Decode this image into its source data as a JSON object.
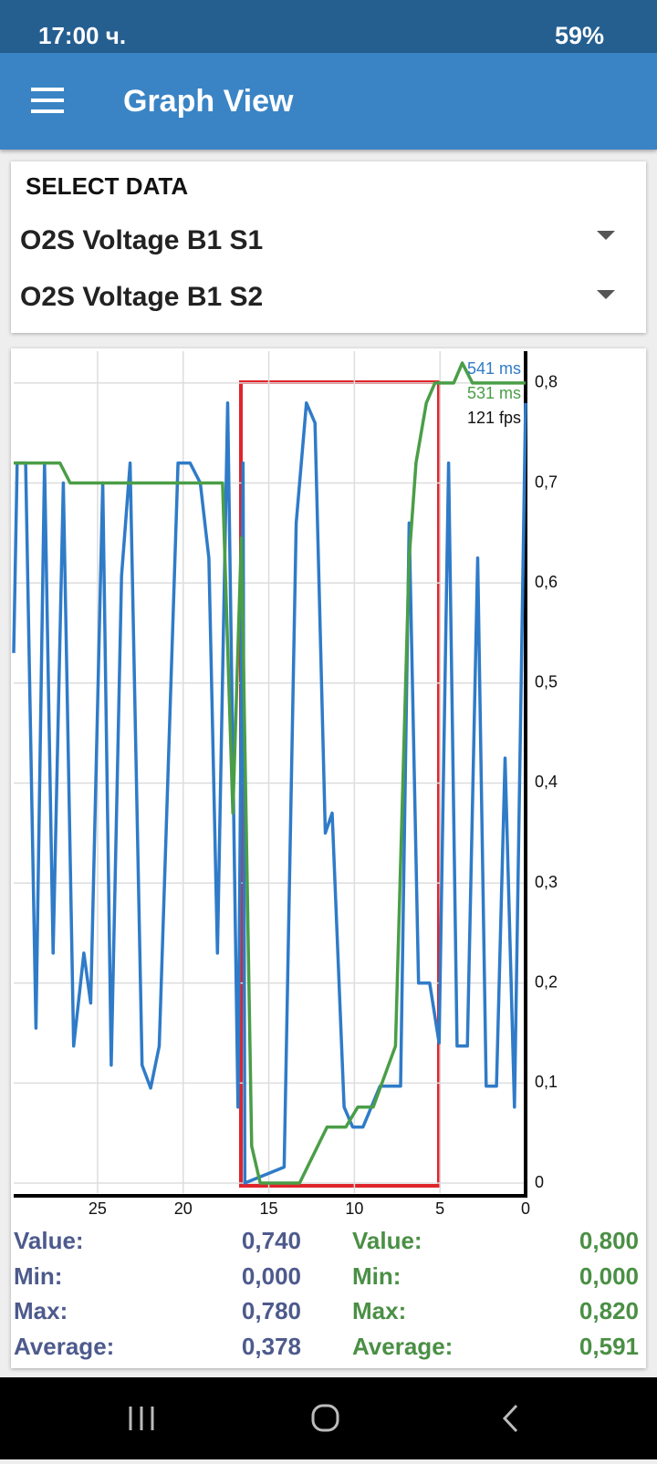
{
  "status_bar": {
    "time": "17:00 ч.",
    "battery": "59%"
  },
  "header": {
    "title": "Graph View"
  },
  "select_data": {
    "label": "SELECT DATA",
    "options": [
      "O2S Voltage B1 S1",
      "O2S Voltage B1 S2"
    ]
  },
  "chart_data": {
    "type": "line",
    "xlim": [
      29.9,
      0
    ],
    "xticks": [
      25,
      20,
      15,
      10,
      5,
      0
    ],
    "ylim": [
      -0.01,
      0.83
    ],
    "yticks": [
      0,
      {
        "value": 0.1,
        "label": "0,1"
      },
      {
        "value": 0.2,
        "label": "0,2"
      },
      {
        "value": 0.3,
        "label": "0,3"
      },
      {
        "value": 0.4,
        "label": "0,4"
      },
      {
        "value": 0.5,
        "label": "0,5"
      },
      {
        "value": 0.6,
        "label": "0,6"
      },
      {
        "value": 0.7,
        "label": "0,7"
      },
      {
        "value": 0.8,
        "label": "0,8"
      }
    ],
    "grid": true,
    "series": [
      {
        "color": "#2f7bc8",
        "x": [
          29.9,
          29.7,
          29.2,
          28.6,
          28.1,
          27.6,
          27.0,
          26.4,
          25.8,
          25.4,
          24.7,
          24.2,
          23.6,
          23.1,
          22.4,
          21.9,
          21.4,
          20.3,
          19.6,
          19.0,
          18.5,
          18.0,
          17.4,
          16.8,
          16.5,
          16.4,
          14.1,
          13.4,
          12.8,
          12.3,
          11.7,
          11.3,
          10.6,
          10.1,
          9.5,
          8.5,
          7.3,
          6.8,
          6.25,
          5.6,
          5.05,
          4.5,
          4.0,
          3.4,
          2.8,
          2.3,
          1.7,
          1.2,
          0.65,
          0
        ],
        "values": [
          0.53,
          0.72,
          0.72,
          0.155,
          0.72,
          0.23,
          0.7,
          0.137,
          0.23,
          0.18,
          0.7,
          0.118,
          0.607,
          0.72,
          0.118,
          0.095,
          0.137,
          0.72,
          0.72,
          0.7,
          0.625,
          0.23,
          0.78,
          0.076,
          0.72,
          0.0,
          0.016,
          0.66,
          0.78,
          0.76,
          0.35,
          0.37,
          0.076,
          0.056,
          0.056,
          0.097,
          0.097,
          0.66,
          0.2,
          0.2,
          0.14,
          0.72,
          0.137,
          0.137,
          0.625,
          0.097,
          0.097,
          0.425,
          0.076,
          0.78
        ]
      },
      {
        "color": "#4a9e47",
        "x": [
          29.9,
          27.2,
          26.6,
          17.7,
          17.1,
          16.6,
          16.0,
          15.5,
          13.2,
          11.6,
          10.5,
          9.8,
          8.9,
          7.6,
          6.8,
          6.4,
          5.8,
          5.3,
          4.2,
          3.7,
          3.1,
          0
        ],
        "values": [
          0.72,
          0.72,
          0.7,
          0.7,
          0.37,
          0.645,
          0.037,
          0.0,
          0.0,
          0.056,
          0.056,
          0.076,
          0.076,
          0.137,
          0.625,
          0.72,
          0.78,
          0.8,
          0.8,
          0.82,
          0.8,
          0.8
        ]
      }
    ],
    "annotations": [
      {
        "text": "541 ms",
        "color": "#2f7bc8"
      },
      {
        "text": "531 ms",
        "color": "#4a9e47"
      },
      {
        "text": "121 fps",
        "color": "#111111"
      }
    ]
  },
  "stats": {
    "left": [
      [
        "Value:",
        "0,740"
      ],
      [
        "Min:",
        "0,000"
      ],
      [
        "Max:",
        "0,780"
      ],
      [
        "Average:",
        "0,378"
      ]
    ],
    "right": [
      [
        "Value:",
        "0,800"
      ],
      [
        "Min:",
        "0,000"
      ],
      [
        "Max:",
        "0,820"
      ],
      [
        "Average:",
        "0,591"
      ]
    ]
  }
}
